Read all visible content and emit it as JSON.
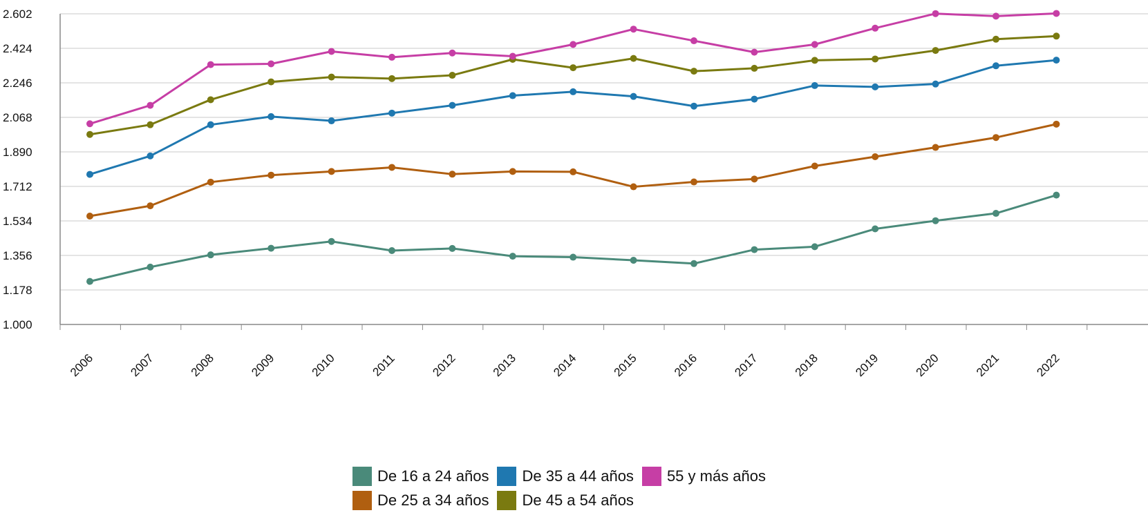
{
  "chart_data": {
    "type": "line",
    "title": "",
    "xlabel": "",
    "ylabel": "",
    "ylim": [
      1000,
      2602
    ],
    "y_ticks": [
      "1.000",
      "1.178",
      "1.356",
      "1.534",
      "1.712",
      "1.890",
      "2.068",
      "2.246",
      "2.424",
      "2.602"
    ],
    "y_tick_values": [
      1000,
      1178,
      1356,
      1534,
      1712,
      1890,
      2068,
      2246,
      2424,
      2602
    ],
    "x": [
      "2006",
      "2007",
      "2008",
      "2009",
      "2010",
      "2011",
      "2012",
      "2013",
      "2014",
      "2015",
      "2016",
      "2017",
      "2018",
      "2019",
      "2020",
      "2021",
      "2022"
    ],
    "grid": true,
    "legend_position": "bottom",
    "series": [
      {
        "name": "De 16 a 24 años",
        "color": "#4a8a7a",
        "values": [
          1222,
          1296,
          1359,
          1393,
          1428,
          1381,
          1392,
          1352,
          1347,
          1331,
          1314,
          1386,
          1401,
          1493,
          1535,
          1573,
          1667
        ]
      },
      {
        "name": "De 25 a 34 años",
        "color": "#b05f10",
        "values": [
          1559,
          1612,
          1734,
          1770,
          1789,
          1810,
          1775,
          1789,
          1787,
          1710,
          1735,
          1750,
          1817,
          1865,
          1913,
          1964,
          2033
        ]
      },
      {
        "name": "De 35 a 44 años",
        "color": "#1f78b0",
        "values": [
          1774,
          1869,
          2030,
          2072,
          2050,
          2090,
          2130,
          2180,
          2200,
          2176,
          2126,
          2162,
          2232,
          2225,
          2240,
          2334,
          2363
        ]
      },
      {
        "name": "De 45 a 54 años",
        "color": "#7a7a10",
        "values": [
          1980,
          2030,
          2159,
          2251,
          2276,
          2268,
          2285,
          2367,
          2324,
          2372,
          2306,
          2321,
          2362,
          2369,
          2413,
          2471,
          2487
        ]
      },
      {
        "name": "55 y más años",
        "color": "#c63ea5",
        "values": [
          2035,
          2130,
          2340,
          2344,
          2408,
          2378,
          2400,
          2383,
          2444,
          2523,
          2463,
          2404,
          2444,
          2528,
          2603,
          2590,
          2604
        ]
      }
    ],
    "legend_rows": [
      [
        "De 16 a 24 años",
        "De 35 a 44 años",
        "55 y más años"
      ],
      [
        "De 25 a 34 años",
        "De 45 a 54 años"
      ]
    ]
  }
}
